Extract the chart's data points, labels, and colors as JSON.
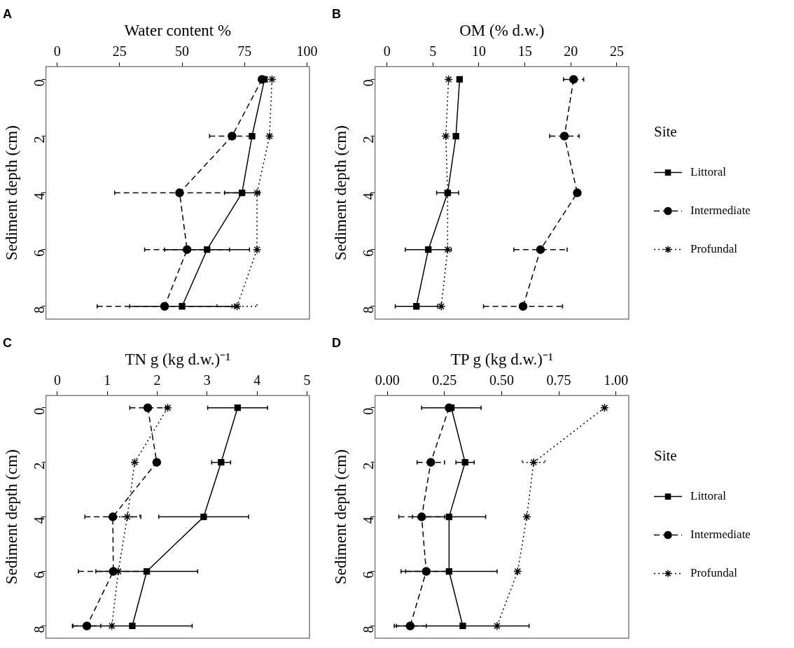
{
  "chart_data": [
    {
      "type": "line",
      "title": "A",
      "xlabel": "Water content %",
      "ylabel": "Sediment depth (cm)",
      "xlim": [
        -4.5,
        101
      ],
      "xticks": [
        0,
        25,
        50,
        75,
        100
      ],
      "ylim": [
        8.45,
        -0.45
      ],
      "yticks": [
        0,
        2,
        4,
        6,
        8
      ],
      "grid": false,
      "legend": false,
      "series": [
        {
          "color": "#000000",
          "marker": "square",
          "line_style": "solid",
          "x": [
            83,
            78,
            74,
            60,
            50
          ],
          "values": [
            0,
            2,
            4,
            6,
            8
          ],
          "xerrors": [
            null,
            null,
            7,
            17,
            21
          ]
        },
        {
          "color": "#000000",
          "marker": "circle",
          "line_style": "dashed",
          "x": [
            82,
            70,
            49,
            52,
            43
          ],
          "values": [
            0,
            2,
            4,
            6,
            8
          ],
          "xerrors": [
            null,
            9,
            26,
            17,
            27
          ]
        },
        {
          "color": "#000000",
          "marker": "cross",
          "line_style": "dotted",
          "x": [
            86,
            85,
            80,
            80,
            72
          ],
          "values": [
            0,
            2,
            4,
            6,
            8
          ],
          "xerrors": [
            null,
            null,
            null,
            null,
            8
          ]
        }
      ]
    },
    {
      "type": "line",
      "title": "B",
      "xlabel": "OM (% d.w.)",
      "ylabel": "Sediment depth (cm)",
      "xlim": [
        -1.3,
        26.3
      ],
      "xticks": [
        0,
        5,
        10,
        15,
        20,
        25
      ],
      "ylim": [
        8.45,
        -0.45
      ],
      "yticks": [
        0,
        2,
        4,
        6,
        8
      ],
      "grid": false,
      "legend": "right",
      "legend_title": "Site",
      "series": [
        {
          "name": "Littoral",
          "color": "#000000",
          "marker": "square",
          "line_style": "solid",
          "x": [
            7.9,
            7.5,
            6.6,
            4.5,
            3.2
          ],
          "values": [
            0,
            2,
            4,
            6,
            8
          ],
          "xerrors": [
            null,
            null,
            1.2,
            2.5,
            2.3
          ]
        },
        {
          "name": "Intermediate",
          "color": "#000000",
          "marker": "circle",
          "line_style": "dashed",
          "x": [
            20.3,
            19.3,
            20.7,
            16.7,
            14.8
          ],
          "values": [
            0,
            2,
            4,
            6,
            8
          ],
          "xerrors": [
            1.1,
            1.6,
            null,
            2.9,
            4.3
          ]
        },
        {
          "name": "Profundal",
          "color": "#000000",
          "marker": "cross",
          "line_style": "dotted",
          "x": [
            6.7,
            6.4,
            6.6,
            6.6,
            5.9
          ],
          "values": [
            0,
            2,
            4,
            6,
            8
          ],
          "xerrors": [
            null,
            null,
            null,
            null,
            null
          ]
        }
      ]
    },
    {
      "type": "line",
      "title": "C",
      "xlabel": "TN g (kg d.w.)⁻¹",
      "ylabel": "Sediment depth (cm)",
      "xlim": [
        -0.23,
        5.05
      ],
      "xticks": [
        0,
        1,
        2,
        3,
        4,
        5
      ],
      "ylim": [
        8.45,
        -0.45
      ],
      "yticks": [
        0,
        2,
        4,
        6,
        8
      ],
      "grid": false,
      "legend": false,
      "series": [
        {
          "color": "#000000",
          "marker": "square",
          "line_style": "solid",
          "x": [
            3.61,
            3.28,
            2.93,
            1.79,
            1.5
          ],
          "values": [
            0,
            2,
            4,
            6,
            8
          ],
          "xerrors": [
            0.6,
            0.19,
            0.9,
            1.02,
            1.2
          ]
        },
        {
          "color": "#000000",
          "marker": "circle",
          "line_style": "dashed",
          "x": [
            1.81,
            1.99,
            1.11,
            1.12,
            0.59
          ],
          "values": [
            0,
            2,
            4,
            6,
            8
          ],
          "xerrors": [
            0.36,
            null,
            0.56,
            0.7,
            0.28
          ]
        },
        {
          "color": "#000000",
          "marker": "cross",
          "line_style": "dotted",
          "x": [
            2.21,
            1.55,
            1.4,
            1.22,
            1.09
          ],
          "values": [
            0,
            2,
            4,
            6,
            8
          ],
          "xerrors": [
            null,
            null,
            0.25,
            null,
            null
          ]
        }
      ]
    },
    {
      "type": "line",
      "title": "D",
      "xlabel": "TP g (kg d.w.)⁻¹",
      "ylabel": "Sediment depth (cm)",
      "xlim": [
        -0.054,
        1.056
      ],
      "xticks": [
        {
          "value": 0,
          "label": "0.00"
        },
        {
          "value": 0.25,
          "label": "0.25"
        },
        {
          "value": 0.5,
          "label": "0.50"
        },
        {
          "value": 0.75,
          "label": "0.75"
        },
        {
          "value": 1,
          "label": "1.00"
        }
      ],
      "ylim": [
        8.45,
        -0.45
      ],
      "yticks": [
        0,
        2,
        4,
        6,
        8
      ],
      "grid": false,
      "legend": "right",
      "legend_title": "Site",
      "series": [
        {
          "name": "Littoral",
          "color": "#000000",
          "marker": "square",
          "line_style": "solid",
          "x": [
            0.28,
            0.34,
            0.27,
            0.27,
            0.33
          ],
          "values": [
            0,
            2,
            4,
            6,
            8
          ],
          "xerrors": [
            0.13,
            0.04,
            0.16,
            0.21,
            0.29
          ]
        },
        {
          "name": "Intermediate",
          "color": "#000000",
          "marker": "circle",
          "line_style": "dashed",
          "x": [
            0.27,
            0.19,
            0.15,
            0.17,
            0.1
          ],
          "values": [
            0,
            2,
            4,
            6,
            8
          ],
          "xerrors": [
            null,
            0.06,
            0.1,
            0.09,
            0.07
          ]
        },
        {
          "name": "Profundal",
          "color": "#000000",
          "marker": "cross",
          "line_style": "dotted",
          "x": [
            0.95,
            0.64,
            0.61,
            0.57,
            0.48
          ],
          "values": [
            0,
            2,
            4,
            6,
            8
          ],
          "xerrors": [
            null,
            0.05,
            null,
            null,
            null
          ]
        }
      ]
    }
  ]
}
